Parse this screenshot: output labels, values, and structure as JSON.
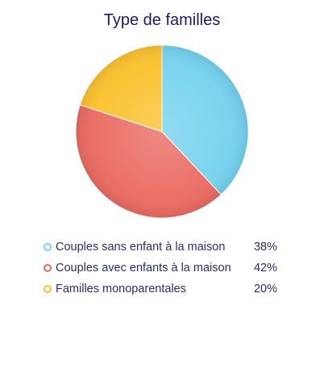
{
  "chart_data": {
    "type": "pie",
    "title": "Type de familles",
    "slices": [
      {
        "label": "Couples sans enfant à la maison",
        "value": 38,
        "value_label": "38%",
        "color": "#74d2ee"
      },
      {
        "label": "Couples avec enfants à la maison",
        "value": 42,
        "value_label": "42%",
        "color": "#ea6a61"
      },
      {
        "label": "Familles monoparentales",
        "value": 20,
        "value_label": "20%",
        "color": "#fbc12d"
      }
    ],
    "start_angle": "12 o'clock",
    "direction": "clockwise",
    "legend": "bottom"
  }
}
